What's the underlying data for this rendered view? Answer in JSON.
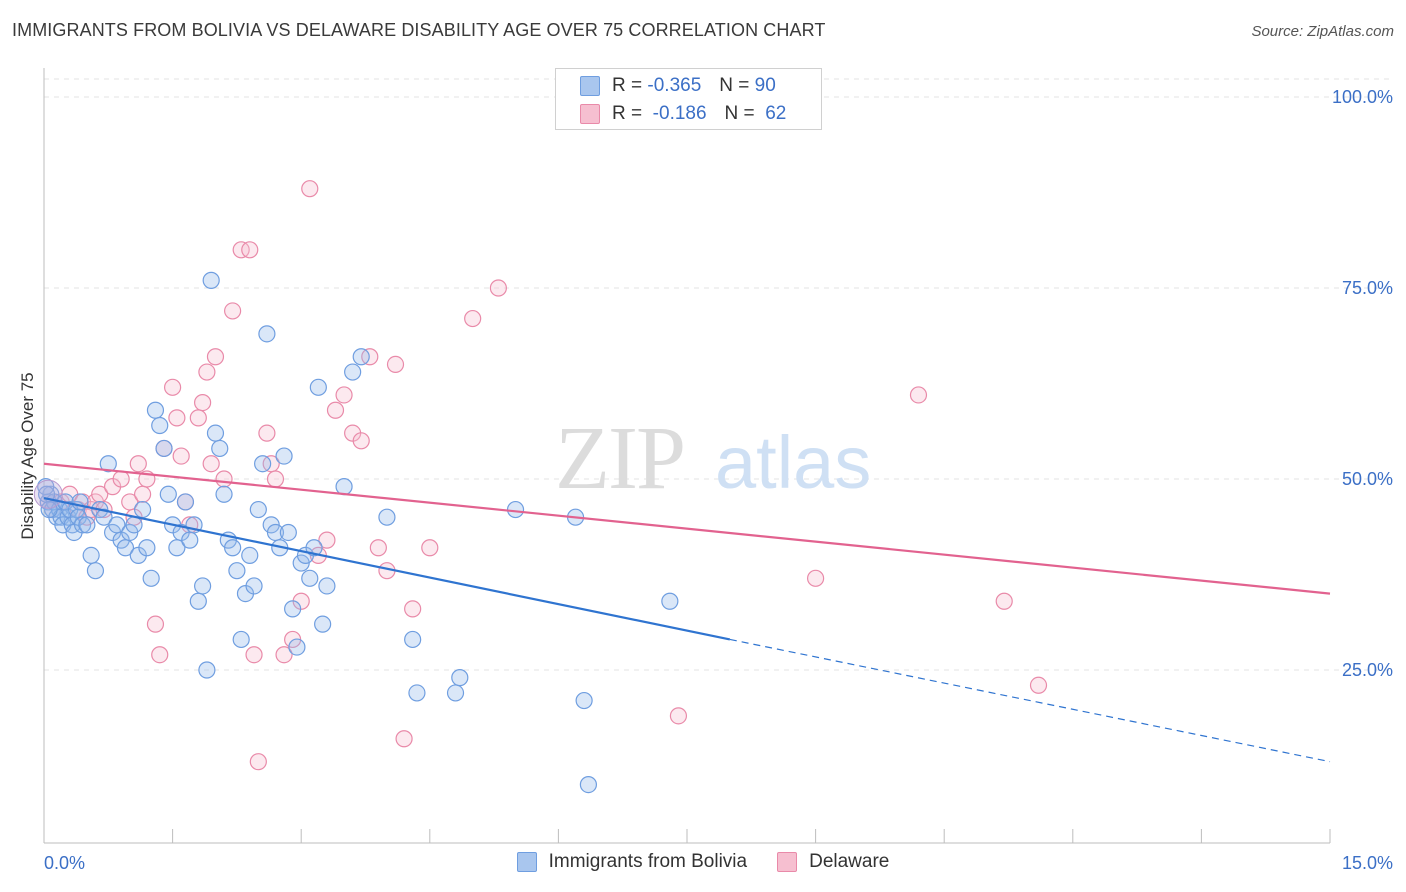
{
  "title": "IMMIGRANTS FROM BOLIVIA VS DELAWARE DISABILITY AGE OVER 75 CORRELATION CHART",
  "source": "Source: ZipAtlas.com",
  "watermark": {
    "zip": "ZIP",
    "atlas": "atlas"
  },
  "legend_top": {
    "rows": [
      {
        "r_label": "R =",
        "r_value": "-0.365",
        "n_label": "N =",
        "n_value": "90",
        "color": "#a9c6ee",
        "border": "#6f9ee0"
      },
      {
        "r_label": "R =",
        "r_value": "-0.186",
        "n_label": "N =",
        "n_value": "62",
        "color": "#f6bfd0",
        "border": "#e98aa9"
      }
    ]
  },
  "legend_bottom": [
    {
      "label": "Immigrants from Bolivia",
      "color": "#a9c6ee",
      "border": "#6f9ee0"
    },
    {
      "label": "Delaware",
      "color": "#f6bfd0",
      "border": "#e98aa9"
    }
  ],
  "chart_data": {
    "type": "scatter",
    "title": "IMMIGRANTS FROM BOLIVIA VS DELAWARE DISABILITY AGE OVER 75 CORRELATION CHART",
    "ylabel": "Disability Age Over 75",
    "xlabel": "",
    "xlim": [
      0,
      15
    ],
    "ylim": [
      0,
      105
    ],
    "x_ticks": [
      "0.0%",
      "15.0%"
    ],
    "y_ticks": [
      {
        "value": 25,
        "label": "25.0%"
      },
      {
        "value": 50,
        "label": "50.0%"
      },
      {
        "value": 75,
        "label": "75.0%"
      },
      {
        "value": 100,
        "label": "100.0%"
      }
    ],
    "grid": true,
    "legend_placement": "top-center",
    "series": [
      {
        "name": "Immigrants from Bolivia",
        "color": "#6f9ee0",
        "fill": "rgba(150,185,235,0.35)",
        "line_color": "#2f74d0",
        "trend": {
          "x0": 0.0,
          "y0": 47.5,
          "x1": 8.0,
          "y1": 29.0,
          "dash_to_x": 15.0,
          "dash_to_y": 13.0
        },
        "points": [
          [
            0.05,
            47
          ],
          [
            0.08,
            48
          ],
          [
            0.1,
            46
          ],
          [
            0.12,
            47
          ],
          [
            0.15,
            45
          ],
          [
            0.18,
            46
          ],
          [
            0.2,
            45
          ],
          [
            0.22,
            44
          ],
          [
            0.25,
            47
          ],
          [
            0.28,
            45
          ],
          [
            0.3,
            46
          ],
          [
            0.33,
            44
          ],
          [
            0.35,
            43
          ],
          [
            0.38,
            46
          ],
          [
            0.4,
            45
          ],
          [
            0.42,
            47
          ],
          [
            0.45,
            44
          ],
          [
            0.5,
            44
          ],
          [
            0.55,
            40
          ],
          [
            0.6,
            38
          ],
          [
            0.65,
            46
          ],
          [
            0.7,
            45
          ],
          [
            0.75,
            52
          ],
          [
            0.8,
            43
          ],
          [
            0.85,
            44
          ],
          [
            0.9,
            42
          ],
          [
            0.95,
            41
          ],
          [
            1.0,
            43
          ],
          [
            1.05,
            44
          ],
          [
            1.1,
            40
          ],
          [
            1.15,
            46
          ],
          [
            1.2,
            41
          ],
          [
            1.25,
            37
          ],
          [
            1.3,
            59
          ],
          [
            1.35,
            57
          ],
          [
            1.4,
            54
          ],
          [
            1.45,
            48
          ],
          [
            1.5,
            44
          ],
          [
            1.55,
            41
          ],
          [
            1.6,
            43
          ],
          [
            1.65,
            47
          ],
          [
            1.7,
            42
          ],
          [
            1.75,
            44
          ],
          [
            1.8,
            34
          ],
          [
            1.85,
            36
          ],
          [
            1.9,
            25
          ],
          [
            1.95,
            76
          ],
          [
            2.0,
            56
          ],
          [
            2.05,
            54
          ],
          [
            2.1,
            48
          ],
          [
            2.15,
            42
          ],
          [
            2.2,
            41
          ],
          [
            2.25,
            38
          ],
          [
            2.3,
            29
          ],
          [
            2.35,
            35
          ],
          [
            2.4,
            40
          ],
          [
            2.45,
            36
          ],
          [
            2.5,
            46
          ],
          [
            2.55,
            52
          ],
          [
            2.6,
            69
          ],
          [
            2.65,
            44
          ],
          [
            2.7,
            43
          ],
          [
            2.75,
            41
          ],
          [
            2.8,
            53
          ],
          [
            2.85,
            43
          ],
          [
            2.9,
            33
          ],
          [
            2.95,
            28
          ],
          [
            3.0,
            39
          ],
          [
            3.05,
            40
          ],
          [
            3.1,
            37
          ],
          [
            3.15,
            41
          ],
          [
            3.2,
            62
          ],
          [
            3.25,
            31
          ],
          [
            3.3,
            36
          ],
          [
            3.5,
            49
          ],
          [
            3.6,
            64
          ],
          [
            3.7,
            66
          ],
          [
            4.0,
            45
          ],
          [
            4.3,
            29
          ],
          [
            4.35,
            22
          ],
          [
            4.8,
            22
          ],
          [
            4.85,
            24
          ],
          [
            5.5,
            46
          ],
          [
            6.2,
            45
          ],
          [
            6.3,
            21
          ],
          [
            6.35,
            10
          ],
          [
            7.3,
            34
          ],
          [
            0.02,
            49
          ],
          [
            0.03,
            48
          ],
          [
            0.06,
            46
          ]
        ]
      },
      {
        "name": "Delaware",
        "color": "#e98aa9",
        "fill": "rgba(246,191,208,0.35)",
        "line_color": "#e2628f",
        "trend": {
          "x0": 0.0,
          "y0": 52.0,
          "x1": 15.0,
          "y1": 35.0
        },
        "points": [
          [
            0.05,
            47
          ],
          [
            0.1,
            46
          ],
          [
            0.2,
            47
          ],
          [
            0.3,
            48
          ],
          [
            0.4,
            46
          ],
          [
            0.45,
            47
          ],
          [
            0.5,
            45
          ],
          [
            0.55,
            46
          ],
          [
            0.6,
            47
          ],
          [
            0.65,
            48
          ],
          [
            0.7,
            46
          ],
          [
            0.8,
            49
          ],
          [
            0.9,
            50
          ],
          [
            1.0,
            47
          ],
          [
            1.05,
            45
          ],
          [
            1.1,
            52
          ],
          [
            1.15,
            48
          ],
          [
            1.2,
            50
          ],
          [
            1.3,
            31
          ],
          [
            1.35,
            27
          ],
          [
            1.4,
            54
          ],
          [
            1.5,
            62
          ],
          [
            1.55,
            58
          ],
          [
            1.6,
            53
          ],
          [
            1.65,
            47
          ],
          [
            1.7,
            44
          ],
          [
            1.8,
            58
          ],
          [
            1.85,
            60
          ],
          [
            1.9,
            64
          ],
          [
            1.95,
            52
          ],
          [
            2.0,
            66
          ],
          [
            2.1,
            50
          ],
          [
            2.2,
            72
          ],
          [
            2.3,
            80
          ],
          [
            2.4,
            80
          ],
          [
            2.45,
            27
          ],
          [
            2.5,
            13
          ],
          [
            2.6,
            56
          ],
          [
            2.65,
            52
          ],
          [
            2.7,
            50
          ],
          [
            2.8,
            27
          ],
          [
            2.9,
            29
          ],
          [
            3.0,
            34
          ],
          [
            3.1,
            88
          ],
          [
            3.2,
            40
          ],
          [
            3.3,
            42
          ],
          [
            3.4,
            59
          ],
          [
            3.5,
            61
          ],
          [
            3.6,
            56
          ],
          [
            3.7,
            55
          ],
          [
            3.8,
            66
          ],
          [
            3.9,
            41
          ],
          [
            4.0,
            38
          ],
          [
            4.1,
            65
          ],
          [
            4.2,
            16
          ],
          [
            4.3,
            33
          ],
          [
            4.5,
            41
          ],
          [
            5.0,
            71
          ],
          [
            5.3,
            75
          ],
          [
            7.4,
            19
          ],
          [
            9.0,
            37
          ],
          [
            10.2,
            61
          ]
        ],
        "extra_points": [
          [
            11.2,
            34
          ],
          [
            11.6,
            23
          ]
        ]
      }
    ]
  }
}
